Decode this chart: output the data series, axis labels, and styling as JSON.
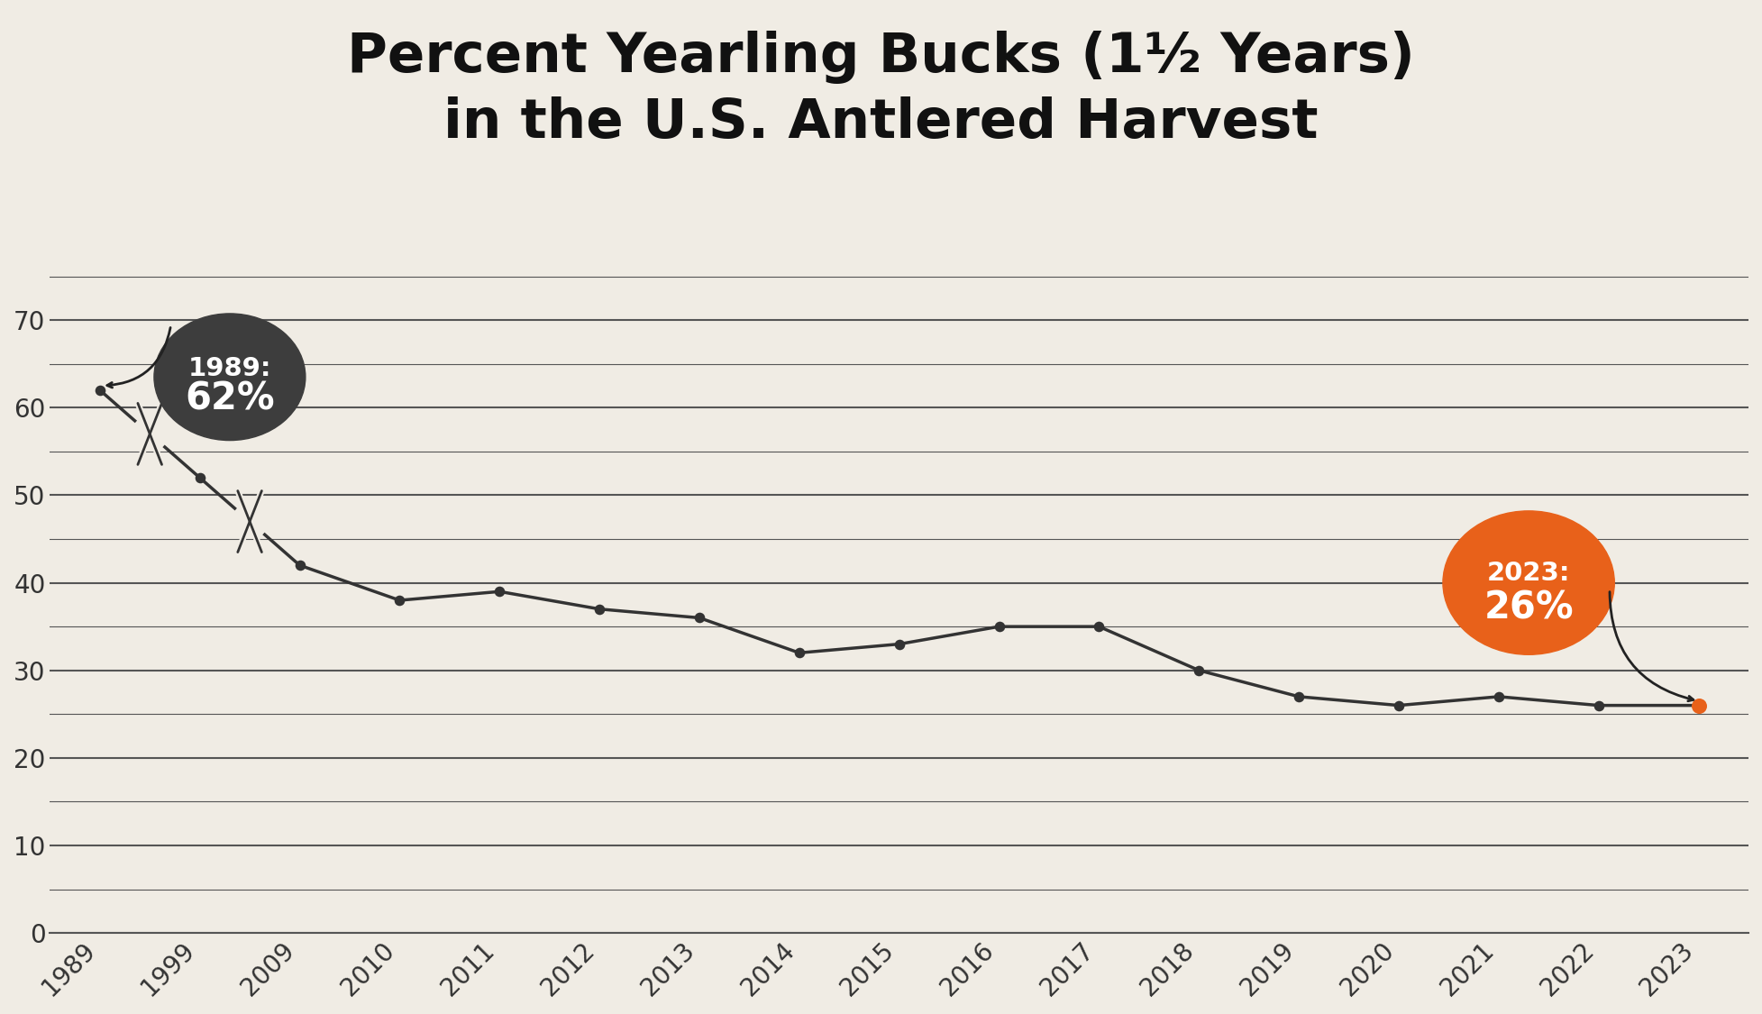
{
  "title_line1": "Percent Yearling Bucks (1½ Years)",
  "title_line2": "in the U.S. Antlered Harvest",
  "background_color": "#f0ece4",
  "years": [
    1989,
    1999,
    2009,
    2010,
    2011,
    2012,
    2013,
    2014,
    2015,
    2016,
    2017,
    2018,
    2019,
    2020,
    2021,
    2022,
    2023
  ],
  "values": [
    62,
    52,
    42,
    38,
    39,
    37,
    36,
    32,
    33,
    35,
    35,
    30,
    27,
    26,
    27,
    26,
    26
  ],
  "line_color": "#333333",
  "marker_color": "#333333",
  "last_marker_color": "#e8611a",
  "ylim": [
    0,
    76
  ],
  "yticks": [
    0,
    10,
    20,
    30,
    40,
    50,
    60,
    70
  ],
  "grid_color": "#555555",
  "axis_label_color": "#333333",
  "annotation_1989_bg": "#3d3d3d",
  "annotation_2023_bg": "#e8611a",
  "annotation_text_color": "#ffffff",
  "title_fontsize": 44,
  "tick_fontsize": 20,
  "annotation_year_fontsize": 21,
  "annotation_pct_fontsize": 30
}
